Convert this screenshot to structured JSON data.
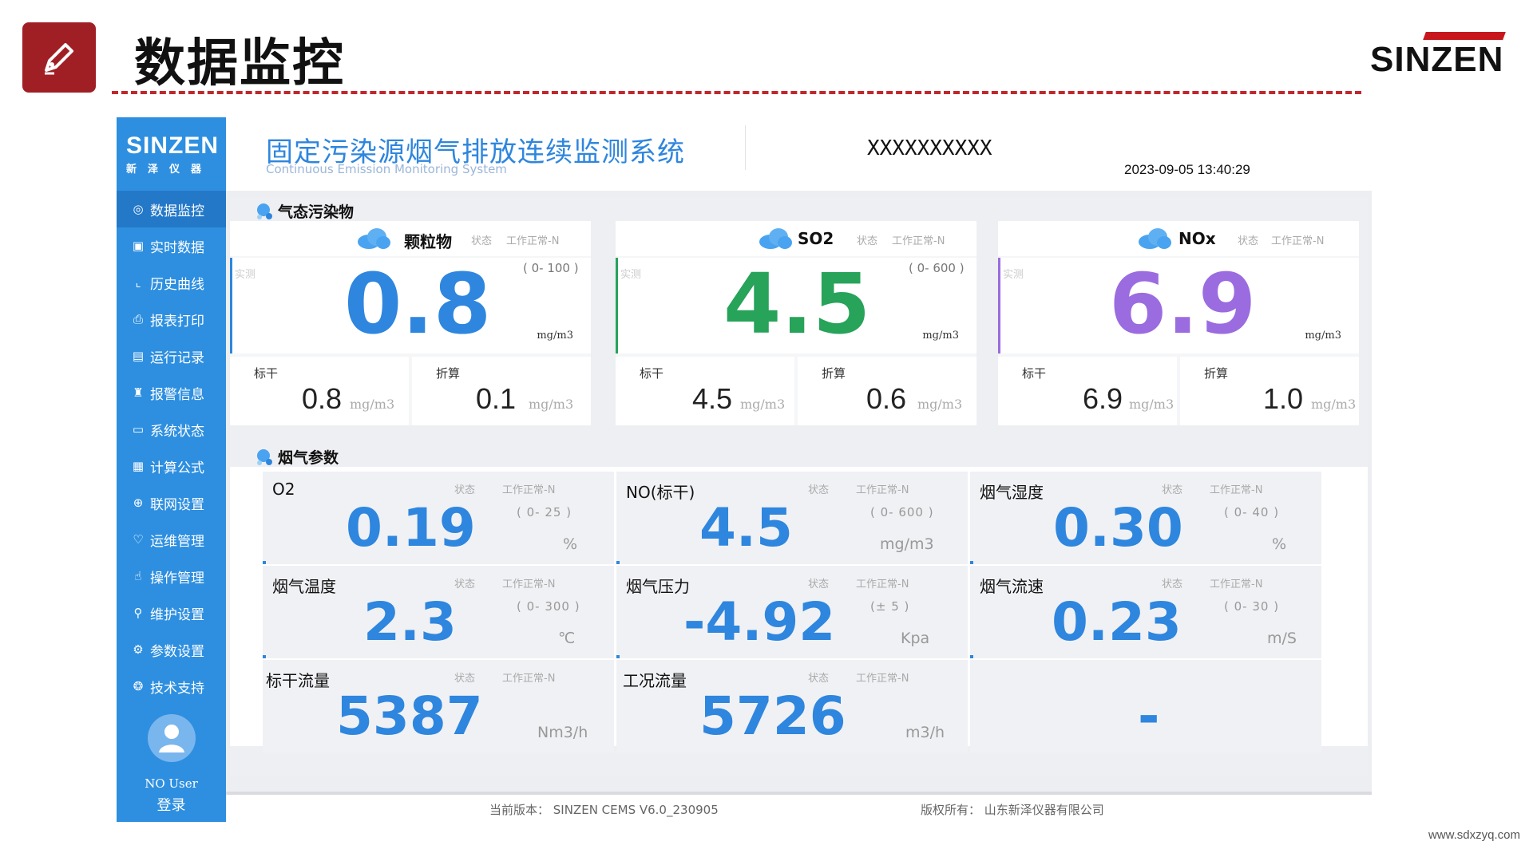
{
  "slide": {
    "title": "数据监控",
    "brand": "SINZEN",
    "url": "www.sdxzyq.com"
  },
  "sidebar": {
    "logo_main": "SINZEN",
    "logo_sub": "新泽仪器",
    "items": [
      {
        "label": "数据监控",
        "icon": "monitor-icon"
      },
      {
        "label": "实时数据",
        "icon": "realtime-icon"
      },
      {
        "label": "历史曲线",
        "icon": "chart-line-icon"
      },
      {
        "label": "报表打印",
        "icon": "print-icon"
      },
      {
        "label": "运行记录",
        "icon": "log-icon"
      },
      {
        "label": "报警信息",
        "icon": "alarm-icon"
      },
      {
        "label": "系统状态",
        "icon": "system-icon"
      },
      {
        "label": "计算公式",
        "icon": "calculator-icon"
      },
      {
        "label": "联网设置",
        "icon": "network-icon"
      },
      {
        "label": "运维管理",
        "icon": "maintenance-icon"
      },
      {
        "label": "操作管理",
        "icon": "operation-icon"
      },
      {
        "label": "维护设置",
        "icon": "service-icon"
      },
      {
        "label": "参数设置",
        "icon": "gear-icon"
      },
      {
        "label": "技术支持",
        "icon": "support-icon"
      }
    ],
    "user": "NO User",
    "login": "登录"
  },
  "topbar": {
    "title": "固定污染源烟气排放连续监测系统",
    "subtitle": "Continuous Emission Monitoring System",
    "station": "XXXXXXXXXX",
    "datetime": "2023-09-05 13:40:29"
  },
  "gas_section": {
    "title": "气态污染物",
    "cards": [
      {
        "name": "颗粒物",
        "state_label": "状态",
        "state": "工作正常-N",
        "actual_label": "实测",
        "range": "( 0-  100  )",
        "value": "0.8",
        "unit": "mg/m3",
        "color": "#2e86de",
        "dry_label": "标干",
        "dry_value": "0.8",
        "dry_unit": "mg/m3",
        "conv_label": "折算",
        "conv_value": "0.1",
        "conv_unit": "mg/m3"
      },
      {
        "name": "SO2",
        "state_label": "状态",
        "state": "工作正常-N",
        "actual_label": "实测",
        "range": "( 0-  600  )",
        "value": "4.5",
        "unit": "mg/m3",
        "color": "#27a35a",
        "dry_label": "标干",
        "dry_value": "4.5",
        "dry_unit": "mg/m3",
        "conv_label": "折算",
        "conv_value": "0.6",
        "conv_unit": "mg/m3"
      },
      {
        "name": "NOx",
        "state_label": "状态",
        "state": "工作正常-N",
        "actual_label": "实测",
        "range": "",
        "value": "6.9",
        "unit": "mg/m3",
        "color": "#9b6be0",
        "dry_label": "标干",
        "dry_value": "6.9",
        "dry_unit": "mg/m3",
        "conv_label": "折算",
        "conv_value": "1.0",
        "conv_unit": "mg/m3"
      }
    ]
  },
  "param_section": {
    "title": "烟气参数",
    "cards": [
      {
        "name": "O2",
        "state_label": "状态",
        "state": "工作正常-N",
        "value": "0.19",
        "range": "( 0-  25  )",
        "unit": "%"
      },
      {
        "name": "NO(标干)",
        "state_label": "状态",
        "state": "工作正常-N",
        "value": "4.5",
        "range": "( 0-  600  )",
        "unit": "mg/m3"
      },
      {
        "name": "烟气湿度",
        "state_label": "状态",
        "state": "工作正常-N",
        "value": "0.30",
        "range": "( 0-  40  )",
        "unit": "%"
      },
      {
        "name": "烟气温度",
        "state_label": "状态",
        "state": "工作正常-N",
        "value": "2.3",
        "range": "( 0-  300  )",
        "unit": "℃"
      },
      {
        "name": "烟气压力",
        "state_label": "状态",
        "state": "工作正常-N",
        "value": "-4.92",
        "range": "(±    5    )",
        "unit": "Kpa"
      },
      {
        "name": "烟气流速",
        "state_label": "状态",
        "state": "工作正常-N",
        "value": "0.23",
        "range": "( 0-  30  )",
        "unit": "m/S"
      },
      {
        "name": "标干流量",
        "state_label": "状态",
        "state": "工作正常-N",
        "value": "5387",
        "range": "",
        "unit": "Nm3/h"
      },
      {
        "name": "工况流量",
        "state_label": "状态",
        "state": "工作正常-N",
        "value": "5726",
        "range": "",
        "unit": "m3/h"
      },
      {
        "name": "",
        "state_label": "",
        "state": "",
        "value": "-",
        "range": "",
        "unit": ""
      }
    ]
  },
  "footer": {
    "version": "当前版本： SINZEN CEMS V6.0_230905",
    "copyright": "版权所有： 山东新泽仪器有限公司"
  }
}
